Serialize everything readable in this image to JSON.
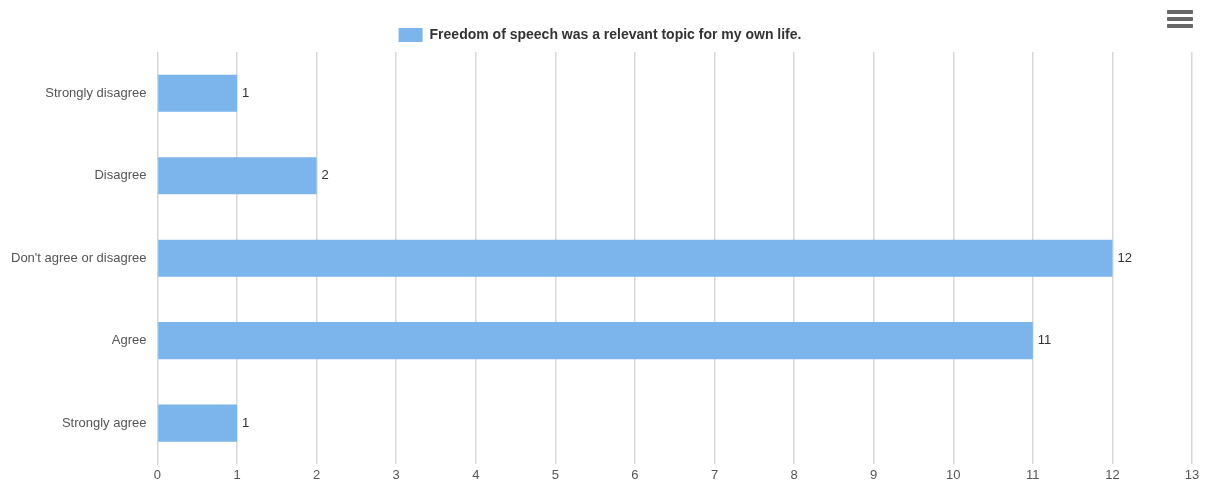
{
  "chart_data": {
    "type": "bar",
    "orientation": "horizontal",
    "categories": [
      "Strongly disagree",
      "Disagree",
      "Don't agree or disagree",
      "Agree",
      "Strongly agree"
    ],
    "series": [
      {
        "name": "Freedom of speech was a relevant topic for my own life.",
        "color": "#7cb5ec",
        "values": [
          1,
          2,
          12,
          11,
          1
        ]
      }
    ],
    "xlim": [
      0,
      13
    ],
    "xticks": [
      0,
      1,
      2,
      3,
      4,
      5,
      6,
      7,
      8,
      9,
      10,
      11,
      12,
      13
    ],
    "grid": "x",
    "legend": "top",
    "data_labels": true
  }
}
